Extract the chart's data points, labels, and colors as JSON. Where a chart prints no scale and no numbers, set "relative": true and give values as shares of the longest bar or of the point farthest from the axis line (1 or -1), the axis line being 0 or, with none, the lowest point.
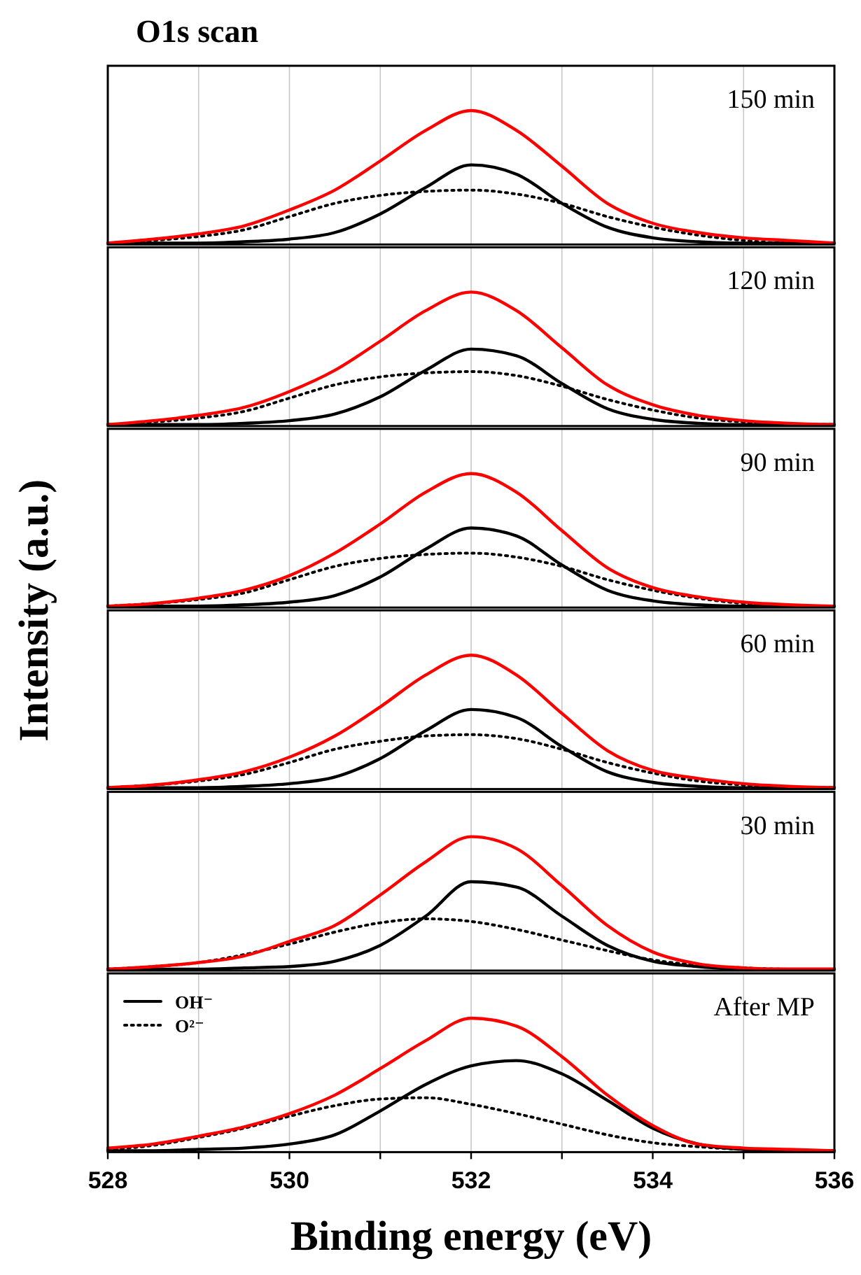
{
  "chart_data": [
    {
      "type": "line",
      "title": "O1s scan",
      "ylabel": "Intensity (a.u.)",
      "relative": true,
      "grid": "x",
      "tick_labels": false,
      "annotations": [
        "150 min"
      ],
      "xlim": [
        528,
        536
      ],
      "xticks": [
        528,
        529,
        530,
        531,
        532,
        533,
        534,
        535,
        536
      ],
      "x": [
        528,
        528.5,
        529,
        529.5,
        530,
        530.5,
        531,
        531.5,
        532,
        532.5,
        533,
        533.5,
        534,
        534.5,
        535,
        535.5,
        536
      ],
      "series": [
        {
          "color": "#000000",
          "line_style": "dotted",
          "values": [
            0,
            0.02,
            0.05,
            0.1,
            0.2,
            0.3,
            0.36,
            0.39,
            0.4,
            0.37,
            0.3,
            0.2,
            0.12,
            0.06,
            0.02,
            0,
            0
          ]
        },
        {
          "color": "#000000",
          "line_style": "solid",
          "values": [
            0,
            0,
            0,
            0.01,
            0.03,
            0.08,
            0.22,
            0.42,
            0.59,
            0.52,
            0.3,
            0.12,
            0.04,
            0.01,
            0,
            0,
            0
          ]
        },
        {
          "color": "#ff0000",
          "line_style": "solid",
          "values": [
            0,
            0.03,
            0.07,
            0.13,
            0.25,
            0.4,
            0.62,
            0.85,
            1.0,
            0.85,
            0.58,
            0.3,
            0.15,
            0.08,
            0.04,
            0.02,
            0
          ]
        }
      ]
    },
    {
      "type": "line",
      "relative": true,
      "grid": "x",
      "tick_labels": false,
      "annotations": [
        "120 min"
      ],
      "xlim": [
        528,
        536
      ],
      "xticks": [
        528,
        529,
        530,
        531,
        532,
        533,
        534,
        535,
        536
      ],
      "x": [
        528,
        528.5,
        529,
        529.5,
        530,
        530.5,
        531,
        531.5,
        532,
        532.5,
        533,
        533.5,
        534,
        534.5,
        535,
        535.5,
        536
      ],
      "series": [
        {
          "color": "#000000",
          "line_style": "dotted",
          "values": [
            0,
            0.02,
            0.05,
            0.1,
            0.2,
            0.3,
            0.36,
            0.39,
            0.4,
            0.37,
            0.29,
            0.19,
            0.11,
            0.05,
            0.02,
            0,
            0
          ]
        },
        {
          "color": "#000000",
          "line_style": "solid",
          "values": [
            0,
            0,
            0,
            0.01,
            0.03,
            0.08,
            0.21,
            0.41,
            0.57,
            0.52,
            0.31,
            0.12,
            0.04,
            0.01,
            0,
            0,
            0
          ]
        },
        {
          "color": "#ff0000",
          "line_style": "solid",
          "values": [
            0,
            0.03,
            0.07,
            0.13,
            0.25,
            0.41,
            0.63,
            0.86,
            1.0,
            0.86,
            0.58,
            0.3,
            0.15,
            0.07,
            0.03,
            0.01,
            0
          ]
        }
      ]
    },
    {
      "type": "line",
      "relative": true,
      "grid": "x",
      "tick_labels": false,
      "annotations": [
        "90 min"
      ],
      "xlim": [
        528,
        536
      ],
      "xticks": [
        528,
        529,
        530,
        531,
        532,
        533,
        534,
        535,
        536
      ],
      "x": [
        528,
        528.5,
        529,
        529.5,
        530,
        530.5,
        531,
        531.5,
        532,
        532.5,
        533,
        533.5,
        534,
        534.5,
        535,
        535.5,
        536
      ],
      "series": [
        {
          "color": "#000000",
          "line_style": "dotted",
          "values": [
            0,
            0.02,
            0.05,
            0.1,
            0.2,
            0.3,
            0.36,
            0.39,
            0.4,
            0.37,
            0.3,
            0.2,
            0.12,
            0.06,
            0.02,
            0,
            0
          ]
        },
        {
          "color": "#000000",
          "line_style": "solid",
          "values": [
            0,
            0,
            0,
            0.01,
            0.03,
            0.08,
            0.22,
            0.43,
            0.59,
            0.53,
            0.31,
            0.12,
            0.04,
            0.01,
            0,
            0,
            0
          ]
        },
        {
          "color": "#ff0000",
          "line_style": "solid",
          "values": [
            0,
            0.02,
            0.06,
            0.12,
            0.23,
            0.4,
            0.62,
            0.86,
            1.0,
            0.86,
            0.57,
            0.29,
            0.14,
            0.07,
            0.03,
            0.01,
            0
          ]
        }
      ]
    },
    {
      "type": "line",
      "relative": true,
      "grid": "x",
      "tick_labels": false,
      "annotations": [
        "60 min"
      ],
      "xlim": [
        528,
        536
      ],
      "xticks": [
        528,
        529,
        530,
        531,
        532,
        533,
        534,
        535,
        536
      ],
      "x": [
        528,
        528.5,
        529,
        529.5,
        530,
        530.5,
        531,
        531.5,
        532,
        532.5,
        533,
        533.5,
        534,
        534.5,
        535,
        535.5,
        536
      ],
      "series": [
        {
          "color": "#000000",
          "line_style": "dotted",
          "values": [
            0,
            0.02,
            0.05,
            0.1,
            0.19,
            0.29,
            0.35,
            0.39,
            0.4,
            0.37,
            0.29,
            0.19,
            0.11,
            0.05,
            0.02,
            0,
            0
          ]
        },
        {
          "color": "#000000",
          "line_style": "solid",
          "values": [
            0,
            0,
            0,
            0.01,
            0.03,
            0.08,
            0.22,
            0.43,
            0.59,
            0.53,
            0.31,
            0.12,
            0.04,
            0.01,
            0,
            0,
            0
          ]
        },
        {
          "color": "#ff0000",
          "line_style": "solid",
          "values": [
            0,
            0.02,
            0.06,
            0.12,
            0.23,
            0.39,
            0.61,
            0.85,
            1.0,
            0.85,
            0.56,
            0.28,
            0.13,
            0.07,
            0.03,
            0.01,
            0
          ]
        }
      ]
    },
    {
      "type": "line",
      "relative": true,
      "grid": "x",
      "tick_labels": false,
      "annotations": [
        "30 min"
      ],
      "xlim": [
        528,
        536
      ],
      "xticks": [
        528,
        529,
        530,
        531,
        532,
        533,
        534,
        535,
        536
      ],
      "x": [
        528,
        528.5,
        529,
        529.5,
        530,
        530.5,
        531,
        531.5,
        532,
        532.5,
        533,
        533.5,
        534,
        534.5,
        535,
        535.5,
        536
      ],
      "series": [
        {
          "color": "#000000",
          "line_style": "dotted",
          "values": [
            0,
            0.02,
            0.05,
            0.11,
            0.19,
            0.28,
            0.35,
            0.38,
            0.36,
            0.3,
            0.22,
            0.14,
            0.07,
            0.03,
            0.01,
            0,
            0
          ]
        },
        {
          "color": "#000000",
          "line_style": "solid",
          "values": [
            0,
            0,
            0,
            0.01,
            0.02,
            0.06,
            0.18,
            0.4,
            0.66,
            0.62,
            0.4,
            0.18,
            0.06,
            0.02,
            0,
            0,
            0
          ]
        },
        {
          "color": "#ff0000",
          "line_style": "solid",
          "values": [
            0,
            0.02,
            0.05,
            0.1,
            0.21,
            0.33,
            0.56,
            0.81,
            1.0,
            0.91,
            0.63,
            0.33,
            0.13,
            0.04,
            0.01,
            0,
            0
          ]
        }
      ]
    },
    {
      "type": "line",
      "xlabel": "Binding energy (eV)",
      "relative": true,
      "grid": "x",
      "tick_labels": "x",
      "legend": "top left",
      "annotations": [
        "After MP"
      ],
      "xlim": [
        528,
        536
      ],
      "xticks": [
        528,
        {
          "value": 529,
          "label": null
        },
        530,
        {
          "value": 531,
          "label": null
        },
        532,
        {
          "value": 533,
          "label": null
        },
        534,
        {
          "value": 535,
          "label": null
        },
        536
      ],
      "x": [
        528,
        528.5,
        529,
        529.5,
        530,
        530.5,
        531,
        531.5,
        532,
        532.5,
        533,
        533.5,
        534,
        534.5,
        535,
        535.5,
        536
      ],
      "series": [
        {
          "name": "OH⁻",
          "color": "#000000",
          "line_style": "solid",
          "values": [
            0,
            0,
            0.01,
            0.02,
            0.05,
            0.12,
            0.3,
            0.5,
            0.64,
            0.68,
            0.58,
            0.38,
            0.17,
            0.05,
            0.01,
            0,
            0
          ]
        },
        {
          "name": "O²⁻",
          "color": "#000000",
          "line_style": "dotted",
          "values": [
            0.01,
            0.04,
            0.1,
            0.17,
            0.26,
            0.34,
            0.39,
            0.4,
            0.35,
            0.28,
            0.2,
            0.12,
            0.06,
            0.03,
            0.01,
            0,
            0
          ]
        },
        {
          "color": "#ff0000",
          "line_style": "solid",
          "values": [
            0.02,
            0.05,
            0.11,
            0.18,
            0.28,
            0.42,
            0.62,
            0.83,
            1.0,
            0.94,
            0.71,
            0.42,
            0.19,
            0.05,
            0.02,
            0.01,
            0
          ]
        }
      ]
    }
  ]
}
